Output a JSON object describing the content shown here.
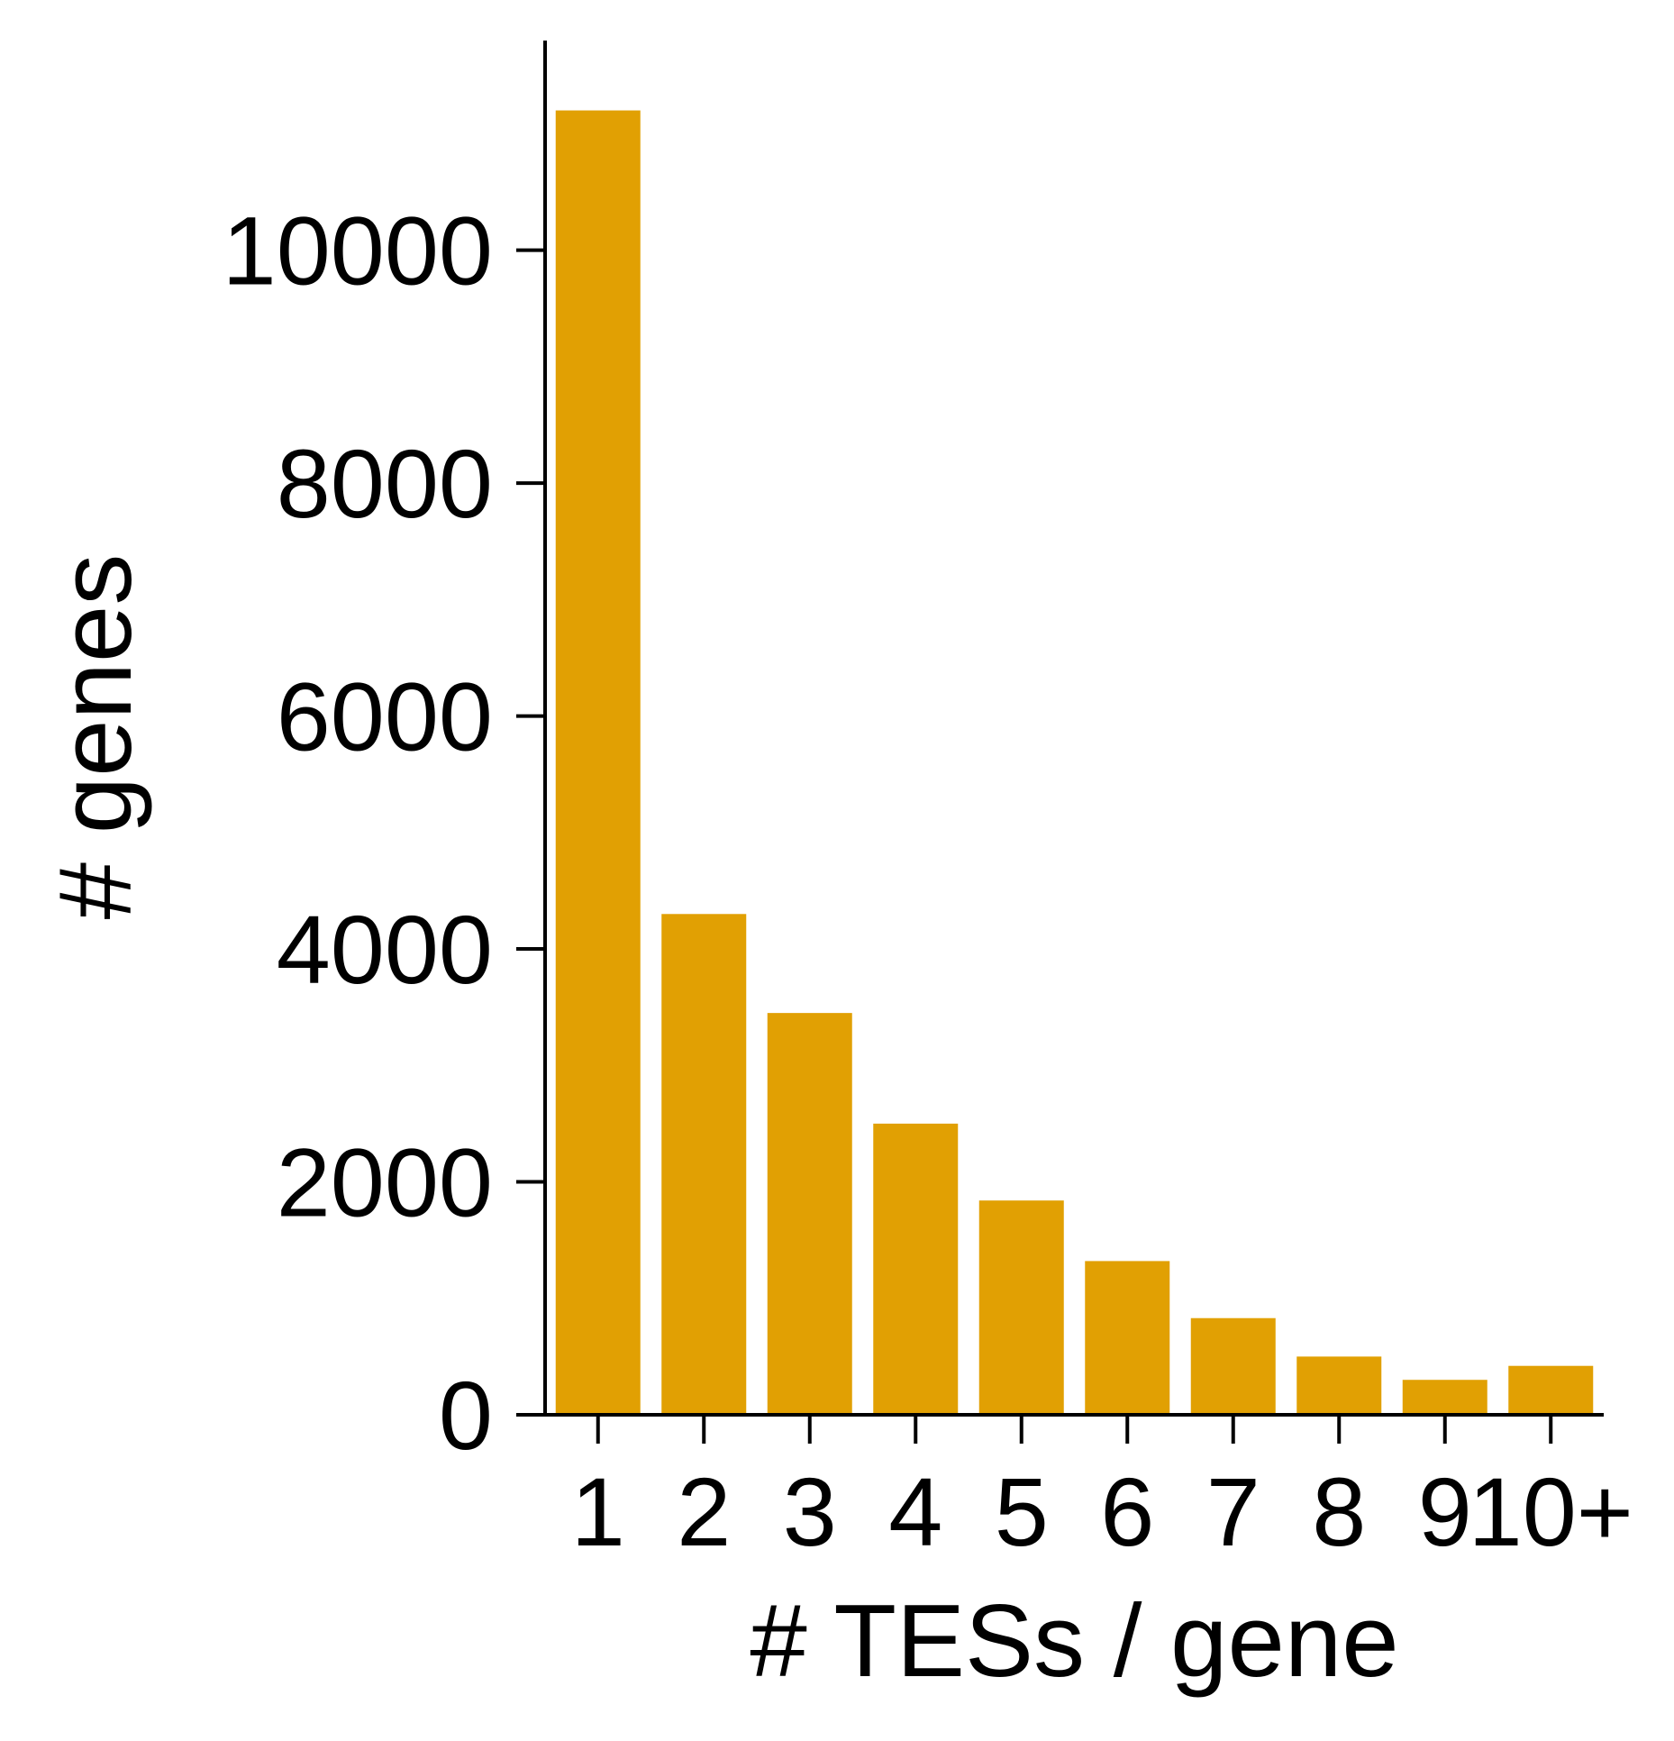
{
  "chart_data": {
    "type": "bar",
    "categories": [
      "1",
      "2",
      "3",
      "4",
      "5",
      "6",
      "7",
      "8",
      "9",
      "10+"
    ],
    "values": [
      11200,
      4300,
      3450,
      2500,
      1840,
      1320,
      830,
      500,
      300,
      420
    ],
    "xlabel": "# TESs / gene",
    "ylabel": "# genes",
    "ylim": [
      0,
      11800
    ],
    "yticks": [
      0,
      2000,
      4000,
      6000,
      8000,
      10000
    ],
    "bar_color": "#E1A003",
    "grid": false,
    "legend": "none"
  }
}
